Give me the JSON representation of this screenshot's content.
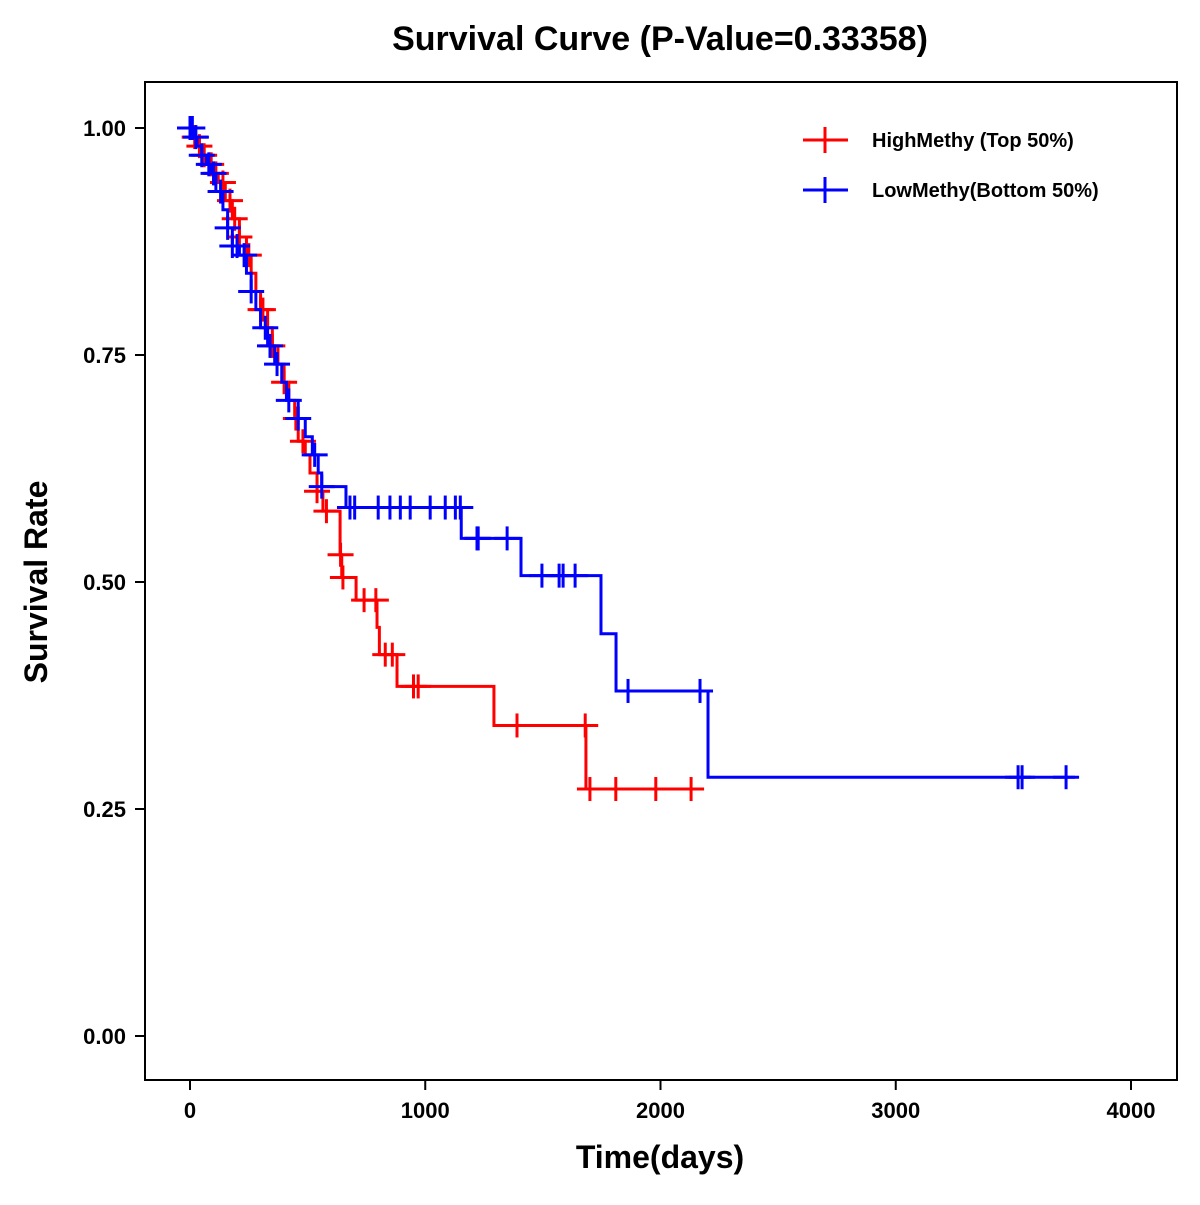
{
  "chart_data": {
    "type": "line",
    "subtype": "kaplan-meier",
    "title": "Survival Curve (P-Value=0.33358)",
    "xlabel": "Time(days)",
    "ylabel": "Survival Rate",
    "xlim": [
      -200,
      4150
    ],
    "ylim": [
      -0.05,
      1.05
    ],
    "xticks": [
      0,
      1000,
      2000,
      3000,
      4000
    ],
    "xtick_labels": [
      "0",
      "1000",
      "2000",
      "3000",
      "4000"
    ],
    "yticks": [
      0,
      0.25,
      0.5,
      0.75,
      1.0
    ],
    "ytick_labels": [
      "0.00",
      "0.25",
      "0.50",
      "0.75",
      "1.00"
    ],
    "grid": false,
    "legend_position": "top-right",
    "series": [
      {
        "name": "HighMethy (Top 50%)",
        "color": "#ff0000",
        "steps": [
          [
            0,
            1
          ],
          [
            20,
            0.99
          ],
          [
            40,
            0.98
          ],
          [
            60,
            0.97
          ],
          [
            80,
            0.96
          ],
          [
            100,
            0.95
          ],
          [
            120,
            0.94
          ],
          [
            150,
            0.92
          ],
          [
            180,
            0.9
          ],
          [
            210,
            0.88
          ],
          [
            240,
            0.86
          ],
          [
            260,
            0.84
          ],
          [
            280,
            0.82
          ],
          [
            300,
            0.8
          ],
          [
            330,
            0.78
          ],
          [
            350,
            0.76
          ],
          [
            374,
            0.74
          ],
          [
            400,
            0.72
          ],
          [
            420,
            0.7
          ],
          [
            445,
            0.68
          ],
          [
            460,
            0.655
          ],
          [
            490,
            0.64
          ],
          [
            510,
            0.62
          ],
          [
            540,
            0.6
          ],
          [
            565,
            0.578
          ],
          [
            638,
            0.53
          ],
          [
            645,
            0.505
          ],
          [
            706,
            0.48
          ],
          [
            795,
            0.45
          ],
          [
            805,
            0.42
          ],
          [
            880,
            0.385
          ],
          [
            1292,
            0.342
          ],
          [
            1683,
            0.272
          ]
        ],
        "end_time": 2168,
        "censor_times": [
          20,
          40,
          60,
          90,
          110,
          140,
          170,
          190,
          210,
          250,
          300,
          310,
          350,
          400,
          450,
          480,
          540,
          580,
          640,
          650,
          740,
          790,
          830,
          860,
          950,
          970,
          1390,
          1680,
          1700,
          1810,
          1980,
          2130
        ]
      },
      {
        "name": "LowMethy(Bottom 50%)",
        "color": "#0000ff",
        "steps": [
          [
            0,
            1
          ],
          [
            15,
            0.99
          ],
          [
            30,
            0.98
          ],
          [
            50,
            0.97
          ],
          [
            70,
            0.96
          ],
          [
            90,
            0.95
          ],
          [
            110,
            0.93
          ],
          [
            140,
            0.91
          ],
          [
            160,
            0.89
          ],
          [
            180,
            0.87
          ],
          [
            210,
            0.86
          ],
          [
            240,
            0.84
          ],
          [
            260,
            0.82
          ],
          [
            280,
            0.8
          ],
          [
            300,
            0.78
          ],
          [
            330,
            0.76
          ],
          [
            360,
            0.74
          ],
          [
            390,
            0.72
          ],
          [
            410,
            0.7
          ],
          [
            460,
            0.68
          ],
          [
            490,
            0.66
          ],
          [
            520,
            0.64
          ],
          [
            545,
            0.62
          ],
          [
            560,
            0.605
          ],
          [
            663,
            0.582
          ],
          [
            1153,
            0.548
          ],
          [
            1407,
            0.507
          ],
          [
            1747,
            0.443
          ],
          [
            1811,
            0.38
          ],
          [
            2202,
            0.285
          ]
        ],
        "end_time": 3762,
        "censor_times": [
          0,
          10,
          25,
          50,
          80,
          100,
          130,
          160,
          180,
          200,
          230,
          260,
          320,
          340,
          370,
          420,
          460,
          530,
          560,
          680,
          700,
          800,
          850,
          894,
          936,
          1021,
          1085,
          1128,
          1149,
          1220,
          1225,
          1348,
          1496,
          1569,
          1586,
          1637,
          1862,
          2168,
          3520,
          3537,
          3724
        ]
      }
    ]
  }
}
